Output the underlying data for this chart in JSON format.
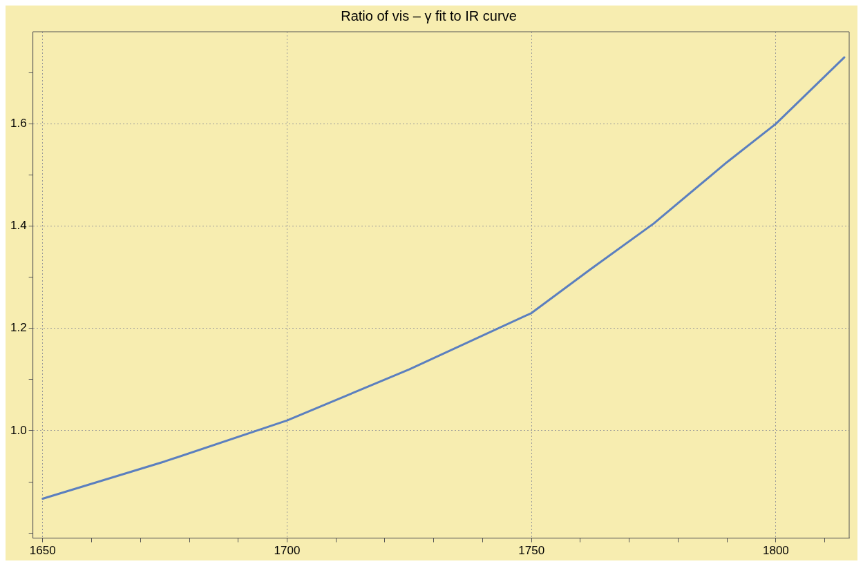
{
  "chart_data": {
    "type": "line",
    "title": "Ratio of vis – γ fit to IR curve",
    "x": [
      1650,
      1675,
      1700,
      1725,
      1750,
      1762,
      1775,
      1790,
      1800,
      1814
    ],
    "series": [
      {
        "color": "#5b7fbf",
        "values": [
          0.867,
          0.94,
          1.02,
          1.12,
          1.23,
          1.315,
          1.405,
          1.525,
          1.6,
          1.73
        ]
      }
    ],
    "xlim": [
      1648,
      1815
    ],
    "ylim": [
      0.79,
      1.78
    ],
    "xticks": [
      1650,
      {
        "value": 1660,
        "label": null
      },
      {
        "value": 1670,
        "label": null
      },
      {
        "value": 1680,
        "label": null
      },
      {
        "value": 1690,
        "label": null
      },
      1700,
      {
        "value": 1710,
        "label": null
      },
      {
        "value": 1720,
        "label": null
      },
      {
        "value": 1730,
        "label": null
      },
      {
        "value": 1740,
        "label": null
      },
      1750,
      {
        "value": 1760,
        "label": null
      },
      {
        "value": 1770,
        "label": null
      },
      {
        "value": 1780,
        "label": null
      },
      {
        "value": 1790,
        "label": null
      },
      1800,
      {
        "value": 1810,
        "label": null
      }
    ],
    "yticks": [
      {
        "value": 0.8,
        "label": null
      },
      {
        "value": 0.9,
        "label": null
      },
      {
        "value": 1.0,
        "label": "1.0"
      },
      {
        "value": 1.1,
        "label": null
      },
      {
        "value": 1.2,
        "label": "1.2"
      },
      {
        "value": 1.3,
        "label": null
      },
      {
        "value": 1.4,
        "label": "1.4"
      },
      {
        "value": 1.5,
        "label": null
      },
      {
        "value": 1.6,
        "label": "1.6"
      },
      {
        "value": 1.7,
        "label": null
      }
    ],
    "grid": true,
    "line_style": "solid",
    "marker": "none",
    "legend": false
  }
}
